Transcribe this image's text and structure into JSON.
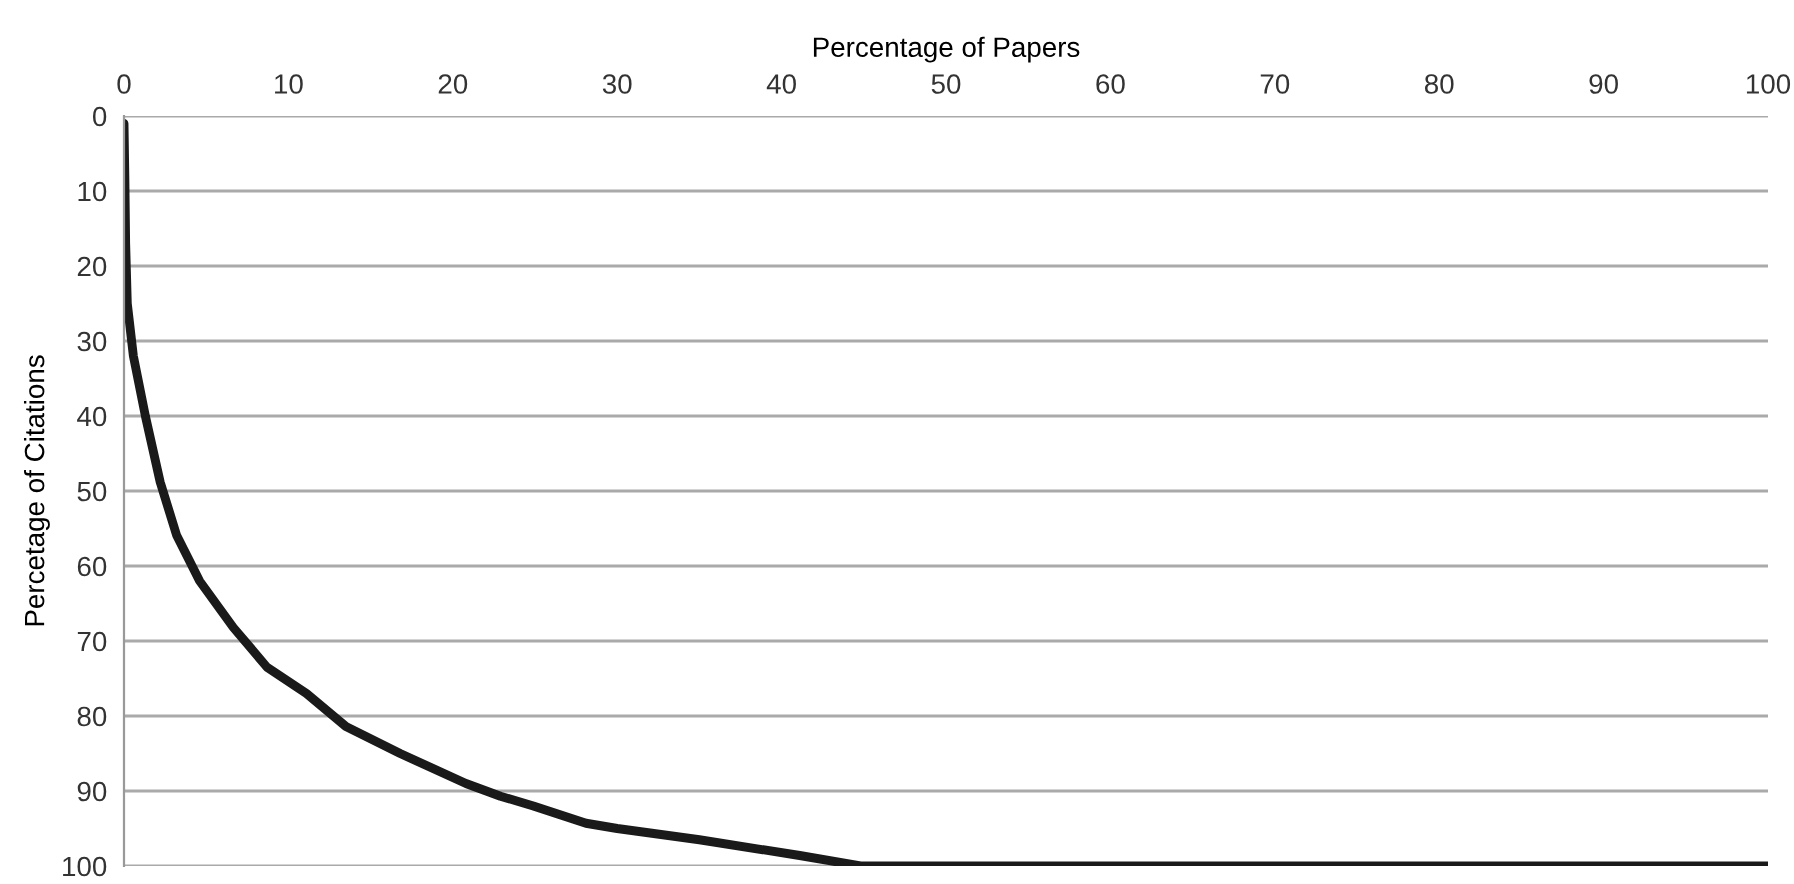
{
  "chart_data": {
    "type": "line",
    "xlabel": "Percentage of Papers",
    "ylabel": "Percetage of Citations",
    "x": [
      0,
      0.05,
      0.1,
      0.2,
      0.57,
      1.3,
      2.2,
      3.2,
      4.6,
      6.65,
      8.7,
      11.1,
      13.5,
      16.8,
      20.8,
      22.9,
      24.9,
      28.1,
      30,
      35,
      41.1,
      44.8,
      100
    ],
    "series": [
      {
        "color": "#1a1a1a",
        "values": [
          1,
          8,
          17,
          25,
          32,
          40,
          48.8,
          55.9,
          62,
          68.2,
          73.5,
          77,
          81.4,
          85,
          89,
          90.7,
          92,
          94.3,
          95,
          96.5,
          98.6,
          100,
          100
        ]
      }
    ],
    "xlim": [
      0,
      100
    ],
    "ylim": [
      100,
      0
    ],
    "xticks": [
      0,
      10,
      20,
      30,
      40,
      50,
      60,
      70,
      80,
      90,
      100
    ],
    "yticks": [
      0,
      10,
      20,
      30,
      40,
      50,
      60,
      70,
      80,
      90,
      100
    ],
    "grid": "y",
    "legend": false,
    "line_style": "solid",
    "marker": "none"
  }
}
